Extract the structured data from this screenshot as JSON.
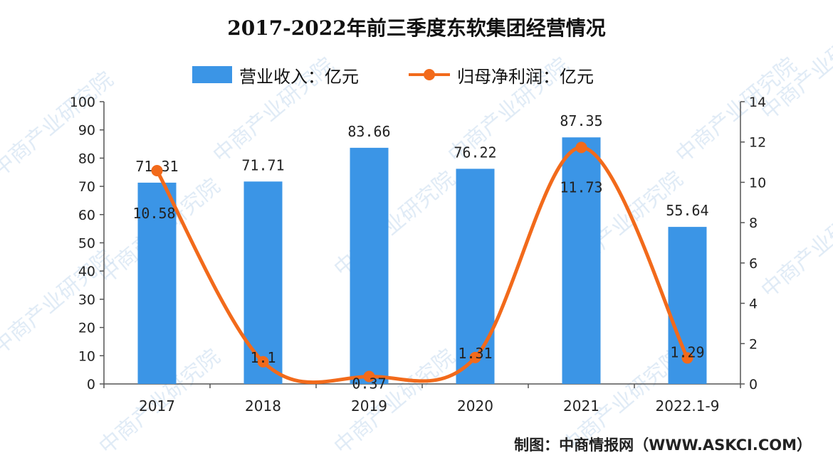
{
  "title": "2017-2022年前三季度东软集团经营情况",
  "source": "制图：中商情报网（WWW.ASKCI.COM）",
  "watermark": "中商产业研究院",
  "colors": {
    "bar": "#3b95e6",
    "line": "#f26a1b"
  },
  "legend": {
    "bar_label": "营业收入：亿元",
    "line_label": "归母净利润：亿元"
  },
  "chart_data": {
    "type": "bar",
    "categories": [
      "2017",
      "2018",
      "2019",
      "2020",
      "2021",
      "2022.1-9"
    ],
    "series": [
      {
        "name": "营业收入：亿元",
        "type": "bar",
        "axis": "left",
        "values": [
          71.31,
          71.71,
          83.66,
          76.22,
          87.35,
          55.64
        ]
      },
      {
        "name": "归母净利润：亿元",
        "type": "line",
        "smooth": true,
        "axis": "right",
        "values": [
          10.58,
          1.1,
          0.37,
          1.31,
          11.73,
          1.29
        ]
      }
    ],
    "y_left": {
      "min": 0,
      "max": 100,
      "ticks": [
        0,
        10,
        20,
        30,
        40,
        50,
        60,
        70,
        80,
        90,
        100
      ]
    },
    "y_right": {
      "min": 0,
      "max": 14,
      "ticks": [
        0,
        2,
        4,
        6,
        8,
        10,
        12,
        14
      ]
    },
    "grid": false,
    "legend_position": "top"
  }
}
